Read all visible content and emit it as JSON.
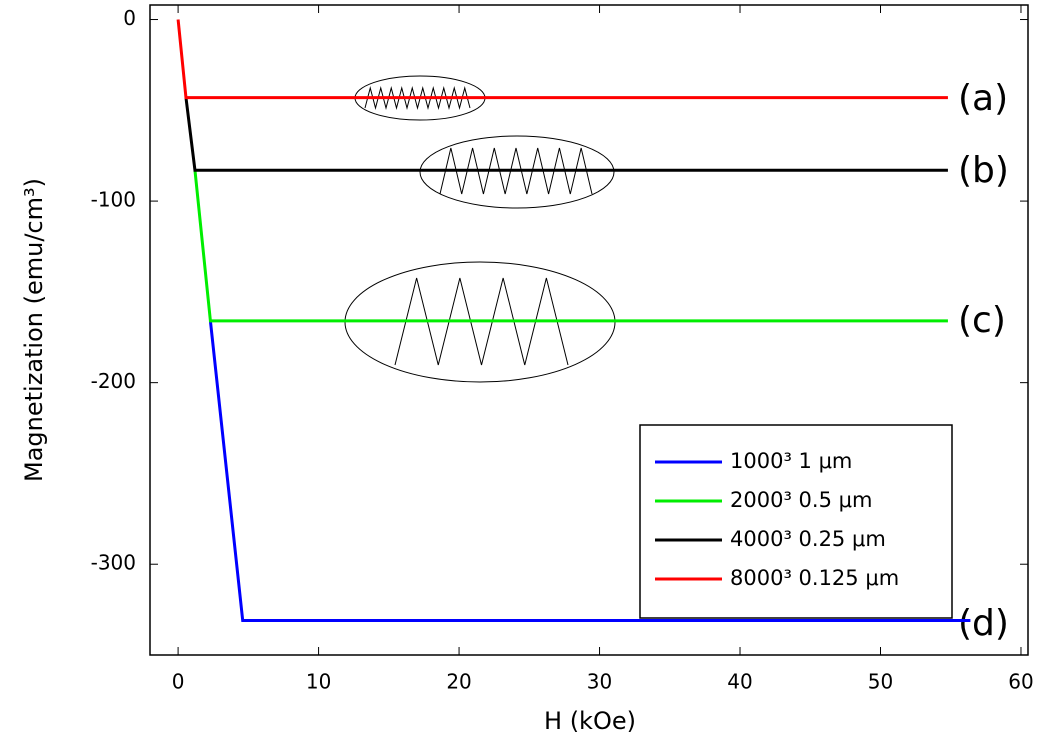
{
  "chart_data": {
    "type": "line",
    "xlabel": "H (kOe)",
    "ylabel": "Magnetization (emu/cm³)",
    "series": [
      {
        "name": "1000³ 1 μm",
        "color": "#0000ff",
        "x": [
          2.3,
          4.6,
          56.4
        ],
        "values": [
          -166,
          -331,
          -331
        ]
      },
      {
        "name": "2000³ 0.5 μm",
        "color": "#00ee00",
        "x": [
          1.2,
          2.3,
          54.8
        ],
        "values": [
          -83,
          -166,
          -166
        ]
      },
      {
        "name": "4000³ 0.25 μm",
        "color": "#000000",
        "x": [
          0.56,
          1.2,
          54.8
        ],
        "values": [
          -43,
          -83,
          -83
        ]
      },
      {
        "name": "8000³ 0.125 μm",
        "color": "#ff0000",
        "x": [
          0,
          0.56,
          54.8
        ],
        "values": [
          0,
          -43,
          -43
        ]
      }
    ],
    "annotations": [
      "(a)",
      "(b)",
      "(c)",
      "(d)"
    ],
    "xlim": [
      -2,
      60.5
    ],
    "xticks": [
      0,
      10,
      20,
      30,
      40,
      50,
      60
    ],
    "ylim": [
      -350,
      8
    ],
    "yticks": [
      0,
      -100,
      -200,
      -300
    ],
    "legend": "lower right"
  }
}
